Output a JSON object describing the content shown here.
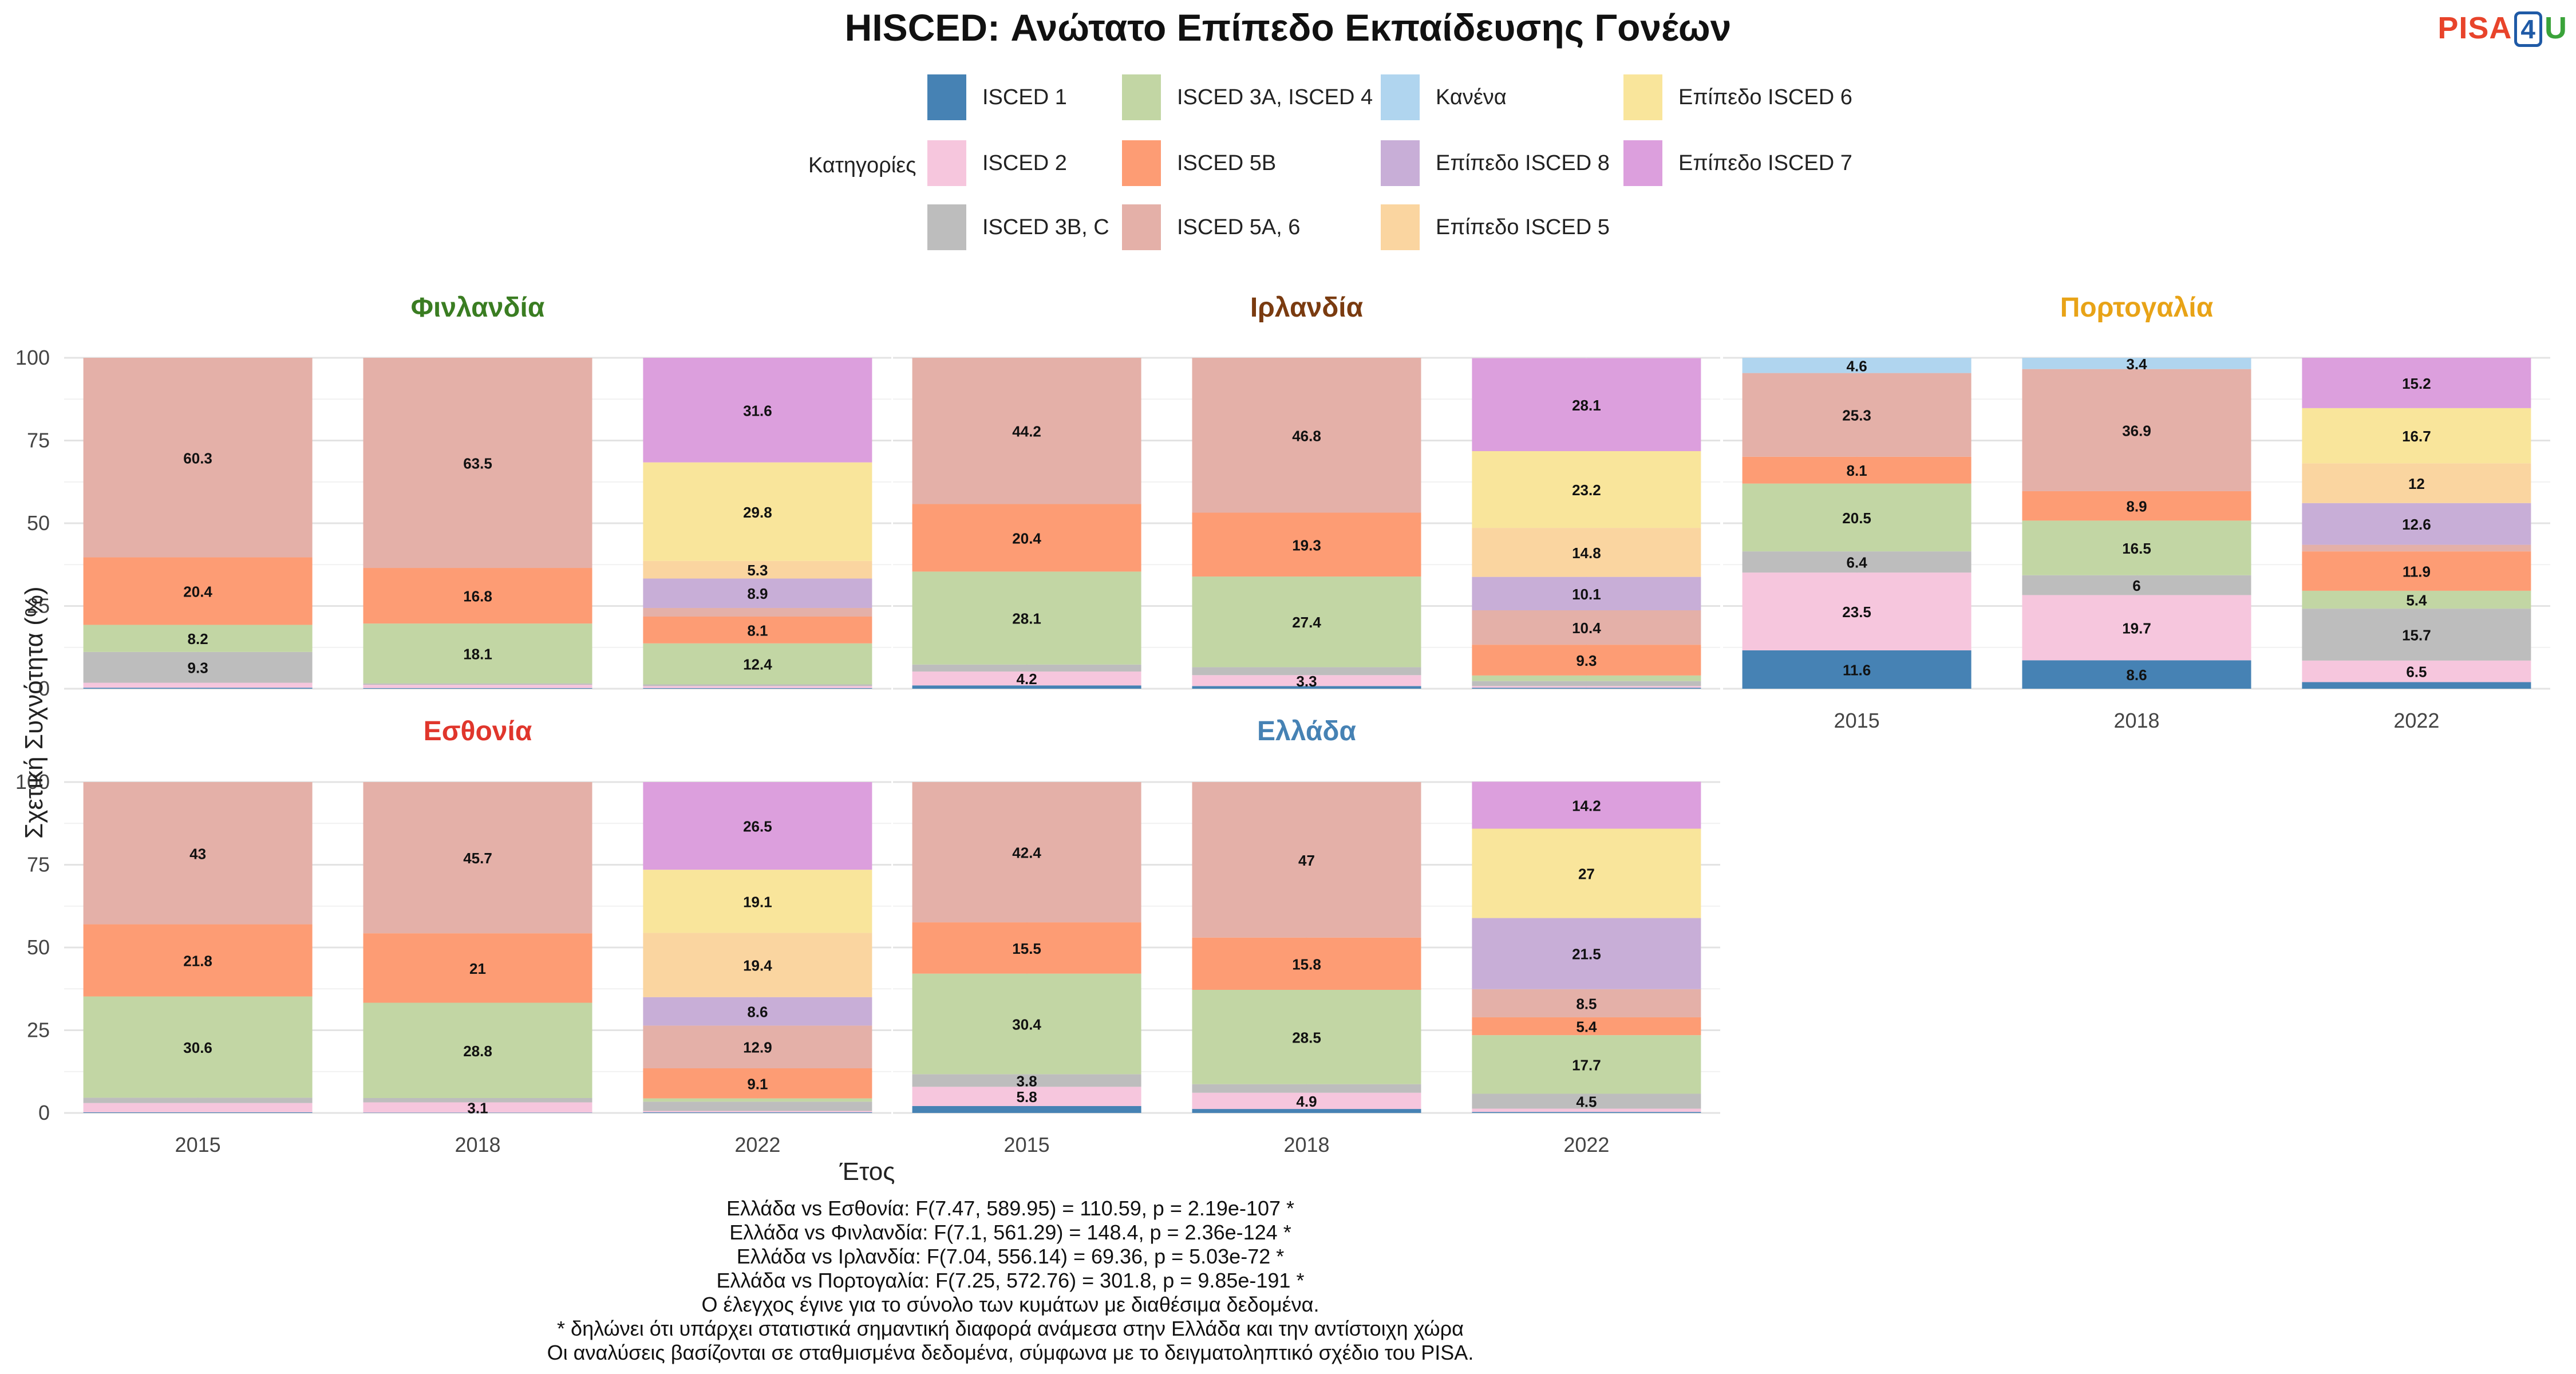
{
  "title": "HISCED: Ανώτατο Επίπεδο Εκπαίδευσης Γονέων",
  "logo": {
    "part1": "PISA",
    "part2": "4",
    "part3": "U"
  },
  "legend": {
    "title": "Κατηγορίες",
    "items": [
      {
        "label": "ISCED 1",
        "color": "#4682b4"
      },
      {
        "label": "ISCED 2",
        "color": "#f6c6dd"
      },
      {
        "label": "ISCED 3B, C",
        "color": "#bdbdbd"
      },
      {
        "label": "ISCED 3A, ISCED 4",
        "color": "#c2d6a4"
      },
      {
        "label": "ISCED 5B",
        "color": "#fd9c74"
      },
      {
        "label": "ISCED 5A, 6",
        "color": "#e4b0a8"
      },
      {
        "label": "Κανένα",
        "color": "#b0d5ef"
      },
      {
        "label": "Επίπεδο ISCED 8",
        "color": "#c8aed7"
      },
      {
        "label": "Επίπεδο ISCED 5",
        "color": "#fad5a0"
      },
      {
        "label": "Επίπεδο ISCED 6",
        "color": "#f9e59b"
      },
      {
        "label": "Επίπεδο ISCED 7",
        "color": "#dc9fdd"
      }
    ]
  },
  "axes": {
    "x_title": "Έτος",
    "y_title": "Σχετική Συχνότητα (%)",
    "y_ticks": [
      "0",
      "25",
      "50",
      "75",
      "100"
    ],
    "x_ticks": [
      "2015",
      "2018",
      "2022"
    ]
  },
  "notes": [
    "Ελλάδα vs Εσθονία: F(7.47, 589.95) = 110.59, p = 2.19e-107 *",
    "Ελλάδα vs Φινλανδία: F(7.1, 561.29) = 148.4, p = 2.36e-124 *",
    "Ελλάδα vs Ιρλανδία: F(7.04, 556.14) = 69.36, p = 5.03e-72 *",
    "Ελλάδα vs Πορτογαλία: F(7.25, 572.76) = 301.8, p = 9.85e-191 *",
    "Ο έλεγχος έγινε για το σύνολο των κυμάτων με διαθέσιμα δεδομένα.",
    "* δηλώνει ότι υπάρχει στατιστικά σημαντική διαφορά ανάμεσα στην Ελλάδα και την αντίστοιχη χώρα",
    "Οι αναλύσεις βασίζονται σε σταθμισμένα δεδομένα, σύμφωνα με το δειγματοληπτικό σχέδιο του PISA."
  ],
  "chart_data": {
    "type": "bar",
    "stacked": true,
    "ylim": [
      0,
      100
    ],
    "grid": true,
    "legend_position": "top",
    "categories": [
      "2015",
      "2018",
      "2022"
    ],
    "panels": [
      {
        "country": "Φινλανδία",
        "title_color": "#3a7d22",
        "bars": [
          {
            "year": "2015",
            "segments": [
              {
                "category": "ISCED 1",
                "value": 0.3
              },
              {
                "category": "ISCED 2",
                "value": 1.5
              },
              {
                "category": "ISCED 3B, C",
                "value": 9.3
              },
              {
                "category": "ISCED 3A, ISCED 4",
                "value": 8.2
              },
              {
                "category": "ISCED 5B",
                "value": 20.4
              },
              {
                "category": "ISCED 5A, 6",
                "value": 60.3
              }
            ]
          },
          {
            "year": "2018",
            "segments": [
              {
                "category": "ISCED 1",
                "value": 0.2
              },
              {
                "category": "ISCED 2",
                "value": 1.0
              },
              {
                "category": "ISCED 3B, C",
                "value": 0.4
              },
              {
                "category": "ISCED 3A, ISCED 4",
                "value": 18.1
              },
              {
                "category": "ISCED 5B",
                "value": 16.8
              },
              {
                "category": "ISCED 5A, 6",
                "value": 63.5
              }
            ]
          },
          {
            "year": "2022",
            "segments": [
              {
                "category": "ISCED 1",
                "value": 0.2
              },
              {
                "category": "ISCED 2",
                "value": 0.6
              },
              {
                "category": "ISCED 3B, C",
                "value": 0.5
              },
              {
                "category": "ISCED 3A, ISCED 4",
                "value": 12.4
              },
              {
                "category": "ISCED 5B",
                "value": 8.1
              },
              {
                "category": "ISCED 5A, 6",
                "value": 2.6
              },
              {
                "category": "Επίπεδο ISCED 8",
                "value": 8.9
              },
              {
                "category": "Επίπεδο ISCED 5",
                "value": 5.3
              },
              {
                "category": "Επίπεδο ISCED 6",
                "value": 29.8
              },
              {
                "category": "Επίπεδο ISCED 7",
                "value": 31.6
              }
            ]
          }
        ]
      },
      {
        "country": "Ιρλανδία",
        "title_color": "#7a3b10",
        "bars": [
          {
            "year": "2015",
            "segments": [
              {
                "category": "ISCED 1",
                "value": 1.0
              },
              {
                "category": "ISCED 2",
                "value": 4.2
              },
              {
                "category": "ISCED 3B, C",
                "value": 2.1
              },
              {
                "category": "ISCED 3A, ISCED 4",
                "value": 28.1
              },
              {
                "category": "ISCED 5B",
                "value": 20.4
              },
              {
                "category": "ISCED 5A, 6",
                "value": 44.2
              }
            ]
          },
          {
            "year": "2018",
            "segments": [
              {
                "category": "ISCED 1",
                "value": 0.8
              },
              {
                "category": "ISCED 2",
                "value": 3.3
              },
              {
                "category": "ISCED 3B, C",
                "value": 2.4
              },
              {
                "category": "ISCED 3A, ISCED 4",
                "value": 27.4
              },
              {
                "category": "ISCED 5B",
                "value": 19.3
              },
              {
                "category": "ISCED 5A, 6",
                "value": 46.8
              }
            ]
          },
          {
            "year": "2022",
            "segments": [
              {
                "category": "ISCED 1",
                "value": 0.3
              },
              {
                "category": "ISCED 2",
                "value": 0.5
              },
              {
                "category": "ISCED 3B, C",
                "value": 1.5
              },
              {
                "category": "ISCED 3A, ISCED 4",
                "value": 1.7
              },
              {
                "category": "ISCED 5B",
                "value": 9.3
              },
              {
                "category": "ISCED 5A, 6",
                "value": 10.4
              },
              {
                "category": "Επίπεδο ISCED 8",
                "value": 10.1
              },
              {
                "category": "Επίπεδο ISCED 5",
                "value": 14.8
              },
              {
                "category": "Επίπεδο ISCED 6",
                "value": 23.2
              },
              {
                "category": "Επίπεδο ISCED 7",
                "value": 28.1
              }
            ]
          }
        ]
      },
      {
        "country": "Πορτογαλία",
        "title_color": "#e8a317",
        "bars": [
          {
            "year": "2015",
            "segments": [
              {
                "category": "ISCED 1",
                "value": 11.6
              },
              {
                "category": "ISCED 2",
                "value": 23.5
              },
              {
                "category": "ISCED 3B, C",
                "value": 6.4
              },
              {
                "category": "ISCED 3A, ISCED 4",
                "value": 20.5
              },
              {
                "category": "ISCED 5B",
                "value": 8.1
              },
              {
                "category": "ISCED 5A, 6",
                "value": 25.3
              },
              {
                "category": "Κανένα",
                "value": 4.6
              }
            ]
          },
          {
            "year": "2018",
            "segments": [
              {
                "category": "ISCED 1",
                "value": 8.6
              },
              {
                "category": "ISCED 2",
                "value": 19.7
              },
              {
                "category": "ISCED 3B, C",
                "value": 6.0
              },
              {
                "category": "ISCED 3A, ISCED 4",
                "value": 16.5
              },
              {
                "category": "ISCED 5B",
                "value": 8.9
              },
              {
                "category": "ISCED 5A, 6",
                "value": 36.9
              },
              {
                "category": "Κανένα",
                "value": 3.4
              }
            ]
          },
          {
            "year": "2022",
            "segments": [
              {
                "category": "ISCED 1",
                "value": 2.0
              },
              {
                "category": "ISCED 2",
                "value": 6.5
              },
              {
                "category": "ISCED 3B, C",
                "value": 15.7
              },
              {
                "category": "ISCED 3A, ISCED 4",
                "value": 5.4
              },
              {
                "category": "ISCED 5B",
                "value": 11.9
              },
              {
                "category": "ISCED 5A, 6",
                "value": 2.0
              },
              {
                "category": "Επίπεδο ISCED 8",
                "value": 12.6
              },
              {
                "category": "Επίπεδο ISCED 5",
                "value": 12.0
              },
              {
                "category": "Επίπεδο ISCED 6",
                "value": 16.7
              },
              {
                "category": "Επίπεδο ISCED 7",
                "value": 15.2
              }
            ]
          }
        ]
      },
      {
        "country": "Εσθονία",
        "title_color": "#e0362c",
        "bars": [
          {
            "year": "2015",
            "segments": [
              {
                "category": "ISCED 1",
                "value": 0.2
              },
              {
                "category": "ISCED 2",
                "value": 2.8
              },
              {
                "category": "ISCED 3B, C",
                "value": 1.6
              },
              {
                "category": "ISCED 3A, ISCED 4",
                "value": 30.6
              },
              {
                "category": "ISCED 5B",
                "value": 21.8
              },
              {
                "category": "ISCED 5A, 6",
                "value": 43.0
              }
            ]
          },
          {
            "year": "2018",
            "segments": [
              {
                "category": "ISCED 1",
                "value": 0.1
              },
              {
                "category": "ISCED 2",
                "value": 3.1
              },
              {
                "category": "ISCED 3B, C",
                "value": 1.3
              },
              {
                "category": "ISCED 3A, ISCED 4",
                "value": 28.8
              },
              {
                "category": "ISCED 5B",
                "value": 21.0
              },
              {
                "category": "ISCED 5A, 6",
                "value": 45.7
              }
            ]
          },
          {
            "year": "2022",
            "segments": [
              {
                "category": "ISCED 1",
                "value": 0.2
              },
              {
                "category": "ISCED 2",
                "value": 0.4
              },
              {
                "category": "ISCED 3B, C",
                "value": 2.8
              },
              {
                "category": "ISCED 3A, ISCED 4",
                "value": 1.0
              },
              {
                "category": "ISCED 5B",
                "value": 9.1
              },
              {
                "category": "ISCED 5A, 6",
                "value": 12.9
              },
              {
                "category": "Επίπεδο ISCED 8",
                "value": 8.6
              },
              {
                "category": "Επίπεδο ISCED 5",
                "value": 19.4
              },
              {
                "category": "Επίπεδο ISCED 6",
                "value": 19.1
              },
              {
                "category": "Επίπεδο ISCED 7",
                "value": 26.5
              }
            ]
          }
        ]
      },
      {
        "country": "Ελλάδα",
        "title_color": "#4682b4",
        "bars": [
          {
            "year": "2015",
            "segments": [
              {
                "category": "ISCED 1",
                "value": 2.1
              },
              {
                "category": "ISCED 2",
                "value": 5.8
              },
              {
                "category": "ISCED 3B, C",
                "value": 3.8
              },
              {
                "category": "ISCED 3A, ISCED 4",
                "value": 30.4
              },
              {
                "category": "ISCED 5B",
                "value": 15.5
              },
              {
                "category": "ISCED 5A, 6",
                "value": 42.4
              }
            ]
          },
          {
            "year": "2018",
            "segments": [
              {
                "category": "ISCED 1",
                "value": 1.2
              },
              {
                "category": "ISCED 2",
                "value": 4.9
              },
              {
                "category": "ISCED 3B, C",
                "value": 2.6
              },
              {
                "category": "ISCED 3A, ISCED 4",
                "value": 28.5
              },
              {
                "category": "ISCED 5B",
                "value": 15.8
              },
              {
                "category": "ISCED 5A, 6",
                "value": 47.0
              }
            ]
          },
          {
            "year": "2022",
            "segments": [
              {
                "category": "ISCED 1",
                "value": 0.3
              },
              {
                "category": "ISCED 2",
                "value": 1.0
              },
              {
                "category": "ISCED 3B, C",
                "value": 4.5
              },
              {
                "category": "ISCED 3A, ISCED 4",
                "value": 17.7
              },
              {
                "category": "ISCED 5B",
                "value": 5.4
              },
              {
                "category": "ISCED 5A, 6",
                "value": 8.5
              },
              {
                "category": "Επίπεδο ISCED 8",
                "value": 21.5
              },
              {
                "category": "Επίπεδο ISCED 5",
                "value": 0.0
              },
              {
                "category": "Επίπεδο ISCED 6",
                "value": 27.0
              },
              {
                "category": "Επίπεδο ISCED 7",
                "value": 14.2
              }
            ]
          }
        ]
      }
    ]
  }
}
